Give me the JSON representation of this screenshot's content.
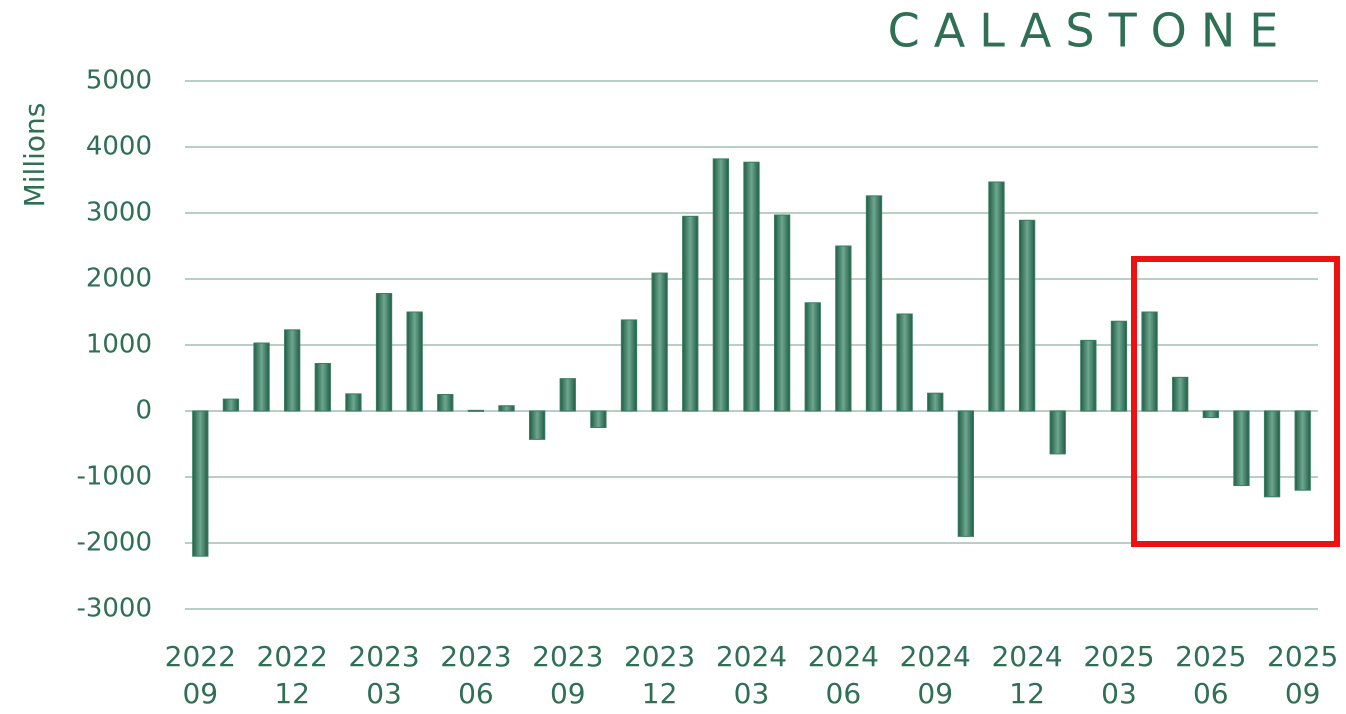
{
  "chart_data": {
    "type": "bar",
    "logo": "CALASTONE",
    "y_label": "Millions",
    "categories": [
      "2022\n09",
      null,
      null,
      "2022\n12",
      null,
      null,
      "2023\n03",
      null,
      null,
      "2023\n06",
      null,
      null,
      "2023\n09",
      null,
      null,
      "2023\n12",
      null,
      null,
      "2024\n03",
      null,
      null,
      "2024\n06",
      null,
      null,
      "2024\n09",
      null,
      null,
      "2024\n12",
      null,
      null,
      "2025\n03",
      null,
      null,
      "2025\n06",
      null,
      null,
      "2025\n09"
    ],
    "values": [
      -2200,
      180,
      1030,
      1230,
      720,
      260,
      1780,
      1500,
      250,
      10,
      80,
      -430,
      490,
      -250,
      1380,
      2090,
      2950,
      3820,
      3770,
      2970,
      1640,
      2500,
      3260,
      1470,
      270,
      -1900,
      3470,
      2890,
      -650,
      1070,
      1360,
      1500,
      510,
      -100,
      -1130,
      -1300,
      -1200
    ],
    "color": "#3a7d63",
    "ylim": [
      -3000,
      5000
    ],
    "yticks": [
      -3000,
      -2000,
      -1000,
      0,
      1000,
      2000,
      3000,
      4000,
      5000
    ],
    "grid": true
  }
}
